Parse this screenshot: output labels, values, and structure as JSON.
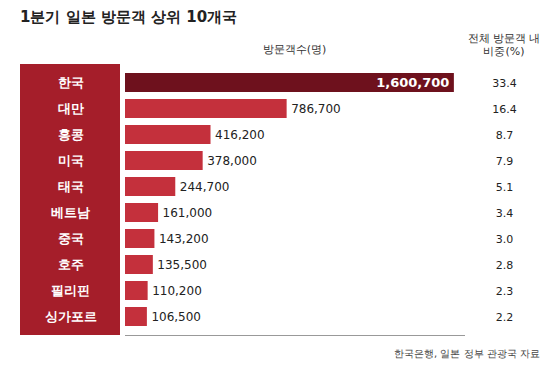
{
  "chart_data": {
    "type": "bar",
    "title": "1분기 일본 방문객 상위 10개국",
    "orientation": "horizontal",
    "categories": [
      "한국",
      "대만",
      "홍콩",
      "미국",
      "태국",
      "베트남",
      "중국",
      "호주",
      "필리핀",
      "싱가포르"
    ],
    "values": [
      1600700,
      786700,
      416200,
      378000,
      244700,
      161000,
      143200,
      135500,
      110200,
      106500
    ],
    "value_labels": [
      "1,600,700",
      "786,700",
      "416,200",
      "378,000",
      "244,700",
      "161,000",
      "143,200",
      "135,500",
      "110,200",
      "106,500"
    ],
    "xlabel": "방문객수(명)",
    "share_title": "전체 방문객 내 비중(%)",
    "shares": [
      33.4,
      16.4,
      8.7,
      7.9,
      5.1,
      3.4,
      3.0,
      2.8,
      2.3,
      2.2
    ],
    "share_labels": [
      "33.4",
      "16.4",
      "8.7",
      "7.9",
      "5.1",
      "3.4",
      "3.0",
      "2.8",
      "2.3",
      "2.2"
    ],
    "colors": [
      "#6e111d",
      "#c4303c",
      "#c4303c",
      "#c4303c",
      "#c4303c",
      "#c4303c",
      "#c4303c",
      "#c4303c",
      "#c4303c",
      "#c4303c"
    ],
    "xlim": [
      0,
      1650000
    ],
    "xticks": [],
    "grid": false,
    "data_labels": true,
    "tick_labels": "y",
    "source": "한국은행, 일본 정부 관광국 자료"
  }
}
